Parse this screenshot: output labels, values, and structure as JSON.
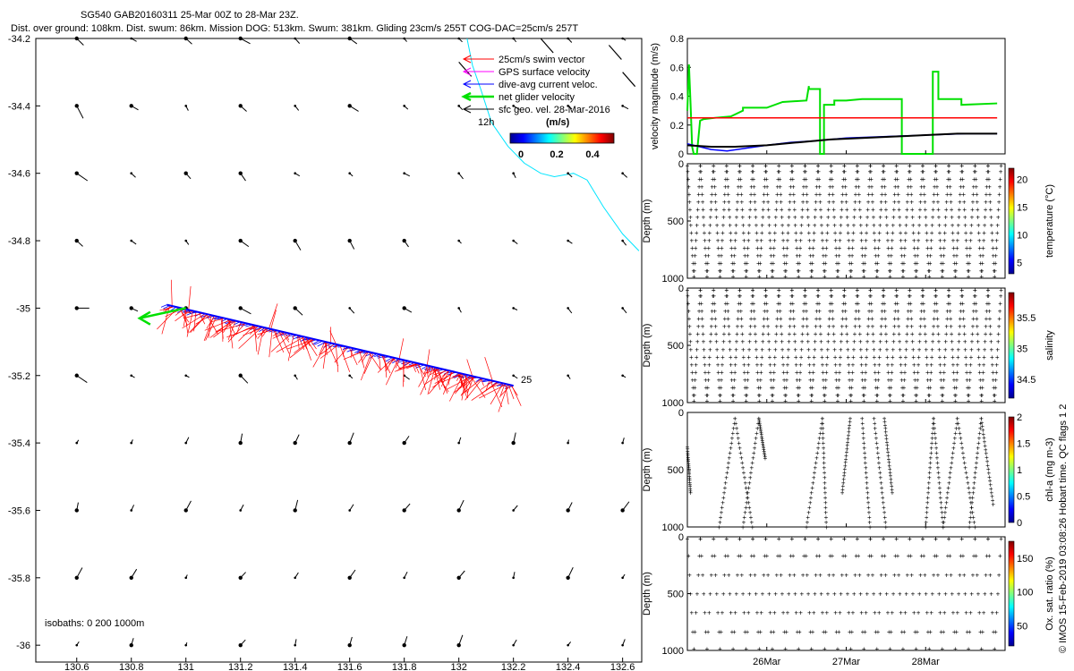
{
  "header": {
    "line1": "SG540 GAB20160311 25-Mar 00Z to 28-Mar 23Z.",
    "line2": "Dist. over ground: 108km. Dist. swum: 86km. Mission DOG: 513km. Swum: 381km. Gliding 23cm/s 255T COG-DAC=25cm/s 257T"
  },
  "credit": "© IMOS 15-Feb-2019 03:08:26 Hobart time. QC flags 1  2",
  "map": {
    "isobaths_label": "isobaths: 0   200  1000m",
    "start_label": "12h",
    "end_label": "25",
    "legend": [
      {
        "label": "25cm/s swim vector",
        "color": "#ff0000"
      },
      {
        "label": "GPS surface velocity",
        "color": "#ff00ff"
      },
      {
        "label": "dive-avg current veloc.",
        "color": "#0000ff"
      },
      {
        "label": "net glider velocity",
        "color": "#00e000"
      },
      {
        "label": "sfc geo. vel. 28-Mar-2016",
        "color": "#000000"
      }
    ],
    "colorbar": {
      "title": "(m/s)",
      "ticks": [
        "0",
        "0.2",
        "0.4"
      ],
      "range": [
        0,
        0.5
      ]
    },
    "colors": {
      "coast": "#00e5ff",
      "track": "#0000ff",
      "swim": "#ff0000",
      "net": "#00e000",
      "geo": "#000000"
    }
  },
  "chart_data": [
    {
      "type": "scatter",
      "title": "",
      "xlim": [
        130.45,
        132.67
      ],
      "ylim": [
        -36.05,
        -34.2
      ],
      "xticks": [
        "130.6",
        "130.8",
        "131",
        "131.2",
        "131.4",
        "131.6",
        "131.8",
        "132",
        "132.2",
        "132.4",
        "132.6"
      ],
      "yticks": [
        "-34.2",
        "-34.4",
        "-34.6",
        "-34.8",
        "-35",
        "-35.2",
        "-35.4",
        "-35.6",
        "-35.8",
        "-36"
      ],
      "glider_track": {
        "start": [
          132.2,
          -35.23
        ],
        "end": [
          130.93,
          -34.99
        ]
      },
      "net_glider_velocity": {
        "from": [
          131.0,
          -35.0
        ],
        "to": [
          130.83,
          -35.03
        ]
      },
      "coastline": [
        [
          132.03,
          -34.2
        ],
        [
          132.05,
          -34.28
        ],
        [
          132.08,
          -34.35
        ],
        [
          132.12,
          -34.45
        ],
        [
          132.18,
          -34.52
        ],
        [
          132.24,
          -34.57
        ],
        [
          132.3,
          -34.6
        ],
        [
          132.35,
          -34.61
        ],
        [
          132.42,
          -34.6
        ],
        [
          132.47,
          -34.62
        ],
        [
          132.53,
          -34.7
        ],
        [
          132.6,
          -34.78
        ],
        [
          132.66,
          -34.83
        ]
      ]
    },
    {
      "type": "line",
      "ylabel": "velocity magnitude (m/s)",
      "ylim": [
        0,
        0.8
      ],
      "yticks": [
        "0",
        "0.2",
        "0.4",
        "0.6",
        "0.8"
      ],
      "xlim": [
        25.0,
        29.0
      ],
      "series": [
        {
          "color": "#00e000",
          "x": [
            25.0,
            25.02,
            25.04,
            25.06,
            25.08,
            25.12,
            25.16,
            25.2,
            25.35,
            25.55,
            25.7,
            25.7,
            26.0,
            26.2,
            26.5,
            26.53,
            26.53,
            26.67,
            26.67,
            26.72,
            26.72,
            26.85,
            26.85,
            27.0,
            27.2,
            27.4,
            27.7,
            27.7,
            28.09,
            28.09,
            28.16,
            28.16,
            28.2,
            28.45,
            28.45,
            28.9
          ],
          "y": [
            0.3,
            0.62,
            0.35,
            0.05,
            0.0,
            0.0,
            0.23,
            0.24,
            0.25,
            0.26,
            0.3,
            0.32,
            0.32,
            0.36,
            0.37,
            0.47,
            0.45,
            0.45,
            0.0,
            0.0,
            0.34,
            0.34,
            0.37,
            0.37,
            0.38,
            0.38,
            0.38,
            0.0,
            0.0,
            0.57,
            0.57,
            0.38,
            0.38,
            0.38,
            0.34,
            0.35
          ]
        },
        {
          "color": "#ff0000",
          "x": [
            25.0,
            28.9
          ],
          "y": [
            0.25,
            0.25
          ]
        },
        {
          "color": "#0000ff",
          "x": [
            25.0,
            25.15,
            25.3,
            25.5,
            25.75,
            26.0,
            26.3,
            26.6,
            27.0,
            27.5,
            28.0,
            28.5,
            28.9
          ],
          "y": [
            0.07,
            0.05,
            0.03,
            0.02,
            0.04,
            0.06,
            0.08,
            0.09,
            0.11,
            0.12,
            0.13,
            0.14,
            0.14
          ]
        },
        {
          "color": "#000000",
          "x": [
            25.0,
            25.3,
            25.6,
            26.0,
            26.4,
            26.8,
            27.2,
            27.6,
            28.0,
            28.4,
            28.9
          ],
          "y": [
            0.06,
            0.05,
            0.05,
            0.06,
            0.08,
            0.1,
            0.11,
            0.12,
            0.13,
            0.14,
            0.14
          ]
        }
      ]
    },
    {
      "type": "scatter",
      "ylabel": "Depth (m)",
      "ylim": [
        1000,
        0
      ],
      "yticks": [
        "1000",
        "500",
        "0"
      ],
      "colorbar": {
        "label": "temperature (°C)",
        "ticks": [
          "5",
          "10",
          "15",
          "20"
        ],
        "range": [
          3,
          22
        ]
      },
      "profiles": "continuous",
      "dives": 24
    },
    {
      "type": "scatter",
      "ylabel": "Depth (m)",
      "ylim": [
        1000,
        0
      ],
      "yticks": [
        "1000",
        "500",
        "0"
      ],
      "colorbar": {
        "label": "salinity",
        "ticks": [
          "34.5",
          "35",
          "35.5"
        ],
        "range": [
          34.2,
          35.9
        ]
      },
      "profiles": "continuous",
      "dives": 24
    },
    {
      "type": "scatter",
      "ylabel": "Depth (m)",
      "ylim": [
        1000,
        0
      ],
      "yticks": [
        "1000",
        "500",
        "0"
      ],
      "colorbar": {
        "label": "chl-a (mg m-3)",
        "ticks": [
          "0",
          "0.5",
          "1",
          "1.5",
          "2"
        ],
        "range": [
          0,
          2
        ]
      },
      "profiles": "segments",
      "segments": [
        [
          25.0,
          25.04,
          300,
          700
        ],
        [
          25.4,
          25.6,
          1000,
          50
        ],
        [
          25.6,
          25.82,
          50,
          1000
        ],
        [
          25.7,
          25.9,
          1000,
          50
        ],
        [
          25.9,
          25.98,
          50,
          400
        ],
        [
          26.5,
          26.7,
          1000,
          50
        ],
        [
          26.7,
          26.75,
          50,
          1000
        ],
        [
          26.95,
          27.05,
          700,
          50
        ],
        [
          27.2,
          27.3,
          50,
          1000
        ],
        [
          27.35,
          27.5,
          50,
          1000
        ],
        [
          27.48,
          27.58,
          50,
          700
        ],
        [
          28.0,
          28.1,
          1000,
          50
        ],
        [
          28.1,
          28.22,
          50,
          1000
        ],
        [
          28.22,
          28.4,
          1000,
          50
        ],
        [
          28.4,
          28.62,
          50,
          1000
        ],
        [
          28.55,
          28.7,
          1000,
          50
        ],
        [
          28.7,
          28.85,
          50,
          800
        ]
      ]
    },
    {
      "type": "scatter",
      "ylabel": "Depth (m)",
      "ylim": [
        1000,
        0
      ],
      "yticks": [
        "1000",
        "500",
        "0"
      ],
      "colorbar": {
        "label": "Ox. sat. ratio (%)",
        "ticks": [
          "50",
          "100",
          "150"
        ],
        "range": [
          20,
          175
        ]
      },
      "profiles": "sparse",
      "dives": 24
    }
  ],
  "time_axis": {
    "ticks": [
      "26Mar",
      "27Mar",
      "28Mar"
    ]
  }
}
